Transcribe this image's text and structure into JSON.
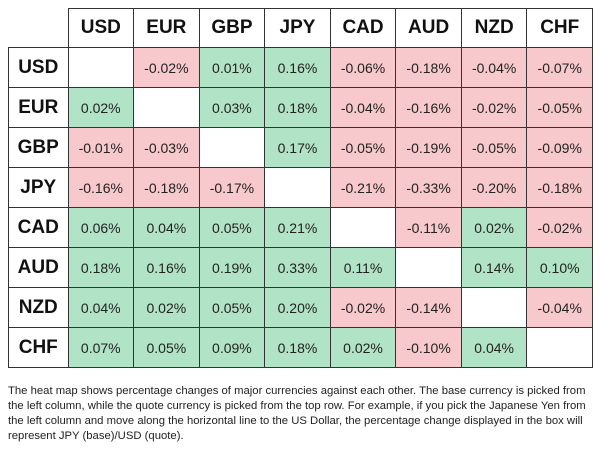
{
  "table": {
    "columns": [
      "USD",
      "EUR",
      "GBP",
      "JPY",
      "CAD",
      "AUD",
      "NZD",
      "CHF"
    ],
    "rows": [
      {
        "label": "USD",
        "cells": [
          null,
          "-0.02%",
          "0.01%",
          "0.16%",
          "-0.06%",
          "-0.18%",
          "-0.04%",
          "-0.07%"
        ]
      },
      {
        "label": "EUR",
        "cells": [
          "0.02%",
          null,
          "0.03%",
          "0.18%",
          "-0.04%",
          "-0.16%",
          "-0.02%",
          "-0.05%"
        ]
      },
      {
        "label": "GBP",
        "cells": [
          "-0.01%",
          "-0.03%",
          null,
          "0.17%",
          "-0.05%",
          "-0.19%",
          "-0.05%",
          "-0.09%"
        ]
      },
      {
        "label": "JPY",
        "cells": [
          "-0.16%",
          "-0.18%",
          "-0.17%",
          null,
          "-0.21%",
          "-0.33%",
          "-0.20%",
          "-0.18%"
        ]
      },
      {
        "label": "CAD",
        "cells": [
          "0.06%",
          "0.04%",
          "0.05%",
          "0.21%",
          null,
          "-0.11%",
          "0.02%",
          "-0.02%"
        ]
      },
      {
        "label": "AUD",
        "cells": [
          "0.18%",
          "0.16%",
          "0.19%",
          "0.33%",
          "0.11%",
          null,
          "0.14%",
          "0.10%"
        ]
      },
      {
        "label": "NZD",
        "cells": [
          "0.04%",
          "0.02%",
          "0.05%",
          "0.20%",
          "-0.02%",
          "-0.14%",
          null,
          "-0.04%"
        ]
      },
      {
        "label": "CHF",
        "cells": [
          "0.07%",
          "0.05%",
          "0.09%",
          "0.18%",
          "0.02%",
          "-0.10%",
          "0.04%",
          null
        ]
      }
    ],
    "positive_color": "#b1e3c6",
    "negative_color": "#f8c9cc"
  },
  "footnote": "The heat map shows percentage changes of major currencies against each other. The base currency is picked from the left column, while the quote currency is picked from the top row. For example, if you pick the Japanese Yen from the left column and move along the horizontal line to the US Dollar, the percentage change displayed in the box will represent JPY (base)/USD (quote)."
}
